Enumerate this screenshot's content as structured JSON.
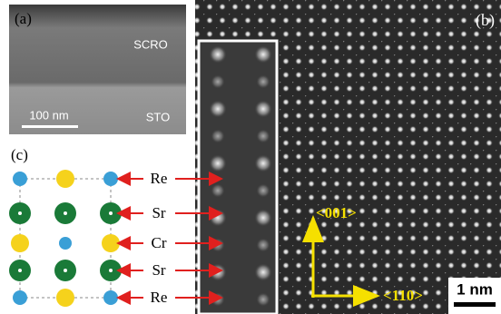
{
  "panel_a": {
    "label": "(a)",
    "top_layer": "SCRO",
    "scale_bar": "100 nm",
    "bottom_layer": "STO"
  },
  "panel_b": {
    "label": "(b)",
    "vertical_direction": "<001>",
    "horizontal_direction": "<110>",
    "scale_bar": "1 nm"
  },
  "panel_c": {
    "label": "(c)",
    "rows": [
      "Re",
      "Sr",
      "Cr",
      "Sr",
      "Re"
    ]
  }
}
